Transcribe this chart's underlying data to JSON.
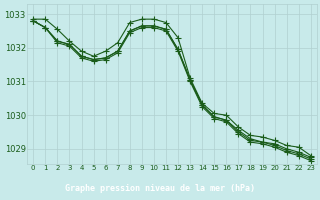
{
  "title": "Graphe pression niveau de la mer (hPa)",
  "bg_color": "#c8eaea",
  "grid_color": "#b0d0d0",
  "line_color": "#1a5c1a",
  "title_bg": "#2d6b2d",
  "title_fg": "#ffffff",
  "series": [
    {
      "x": [
        0,
        1,
        2,
        3,
        4,
        5,
        6,
        7,
        8,
        9,
        10,
        11,
        12,
        13,
        14,
        15,
        16,
        17,
        18,
        19,
        20,
        21,
        22,
        23
      ],
      "y": [
        1032.85,
        1032.85,
        1032.55,
        1032.2,
        1031.9,
        1031.75,
        1031.9,
        1032.15,
        1032.75,
        1032.85,
        1032.85,
        1032.75,
        1032.3,
        1031.1,
        1030.35,
        1030.05,
        1030.0,
        1029.65,
        1029.4,
        1029.35,
        1029.25,
        1029.1,
        1029.05,
        1028.8
      ]
    },
    {
      "x": [
        0,
        1,
        2,
        3,
        4,
        5,
        6,
        7,
        8,
        9,
        10,
        11,
        12,
        13,
        14,
        15,
        16,
        17,
        18,
        19,
        20,
        21,
        22,
        23
      ],
      "y": [
        1032.8,
        1032.6,
        1032.2,
        1032.1,
        1031.75,
        1031.65,
        1031.7,
        1031.9,
        1032.5,
        1032.65,
        1032.65,
        1032.55,
        1031.95,
        1031.05,
        1030.3,
        1029.95,
        1029.85,
        1029.55,
        1029.3,
        1029.2,
        1029.15,
        1029.0,
        1028.9,
        1028.75
      ]
    },
    {
      "x": [
        0,
        1,
        2,
        3,
        4,
        5,
        6,
        7,
        8,
        9,
        10,
        11,
        12,
        13,
        14,
        15,
        16,
        17,
        18,
        19,
        20,
        21,
        22,
        23
      ],
      "y": [
        1032.8,
        1032.6,
        1032.2,
        1032.1,
        1031.75,
        1031.65,
        1031.7,
        1031.9,
        1032.5,
        1032.65,
        1032.65,
        1032.55,
        1031.95,
        1031.05,
        1030.3,
        1029.95,
        1029.85,
        1029.5,
        1029.25,
        1029.2,
        1029.1,
        1028.95,
        1028.85,
        1028.7
      ]
    },
    {
      "x": [
        0,
        1,
        2,
        3,
        4,
        5,
        6,
        7,
        8,
        9,
        10,
        11,
        12,
        13,
        14,
        15,
        16,
        17,
        18,
        19,
        20,
        21,
        22,
        23
      ],
      "y": [
        1032.8,
        1032.6,
        1032.15,
        1032.05,
        1031.7,
        1031.6,
        1031.65,
        1031.85,
        1032.45,
        1032.6,
        1032.6,
        1032.5,
        1031.9,
        1031.0,
        1030.25,
        1029.9,
        1029.8,
        1029.45,
        1029.2,
        1029.15,
        1029.05,
        1028.9,
        1028.8,
        1028.65
      ]
    }
  ],
  "xlim": [
    -0.5,
    23.5
  ],
  "ylim": [
    1028.55,
    1033.3
  ],
  "yticks": [
    1029,
    1030,
    1031,
    1032,
    1033
  ],
  "xticks": [
    0,
    1,
    2,
    3,
    4,
    5,
    6,
    7,
    8,
    9,
    10,
    11,
    12,
    13,
    14,
    15,
    16,
    17,
    18,
    19,
    20,
    21,
    22,
    23
  ],
  "font_color": "#1a5c1a",
  "marker_size": 4,
  "line_width": 0.8
}
